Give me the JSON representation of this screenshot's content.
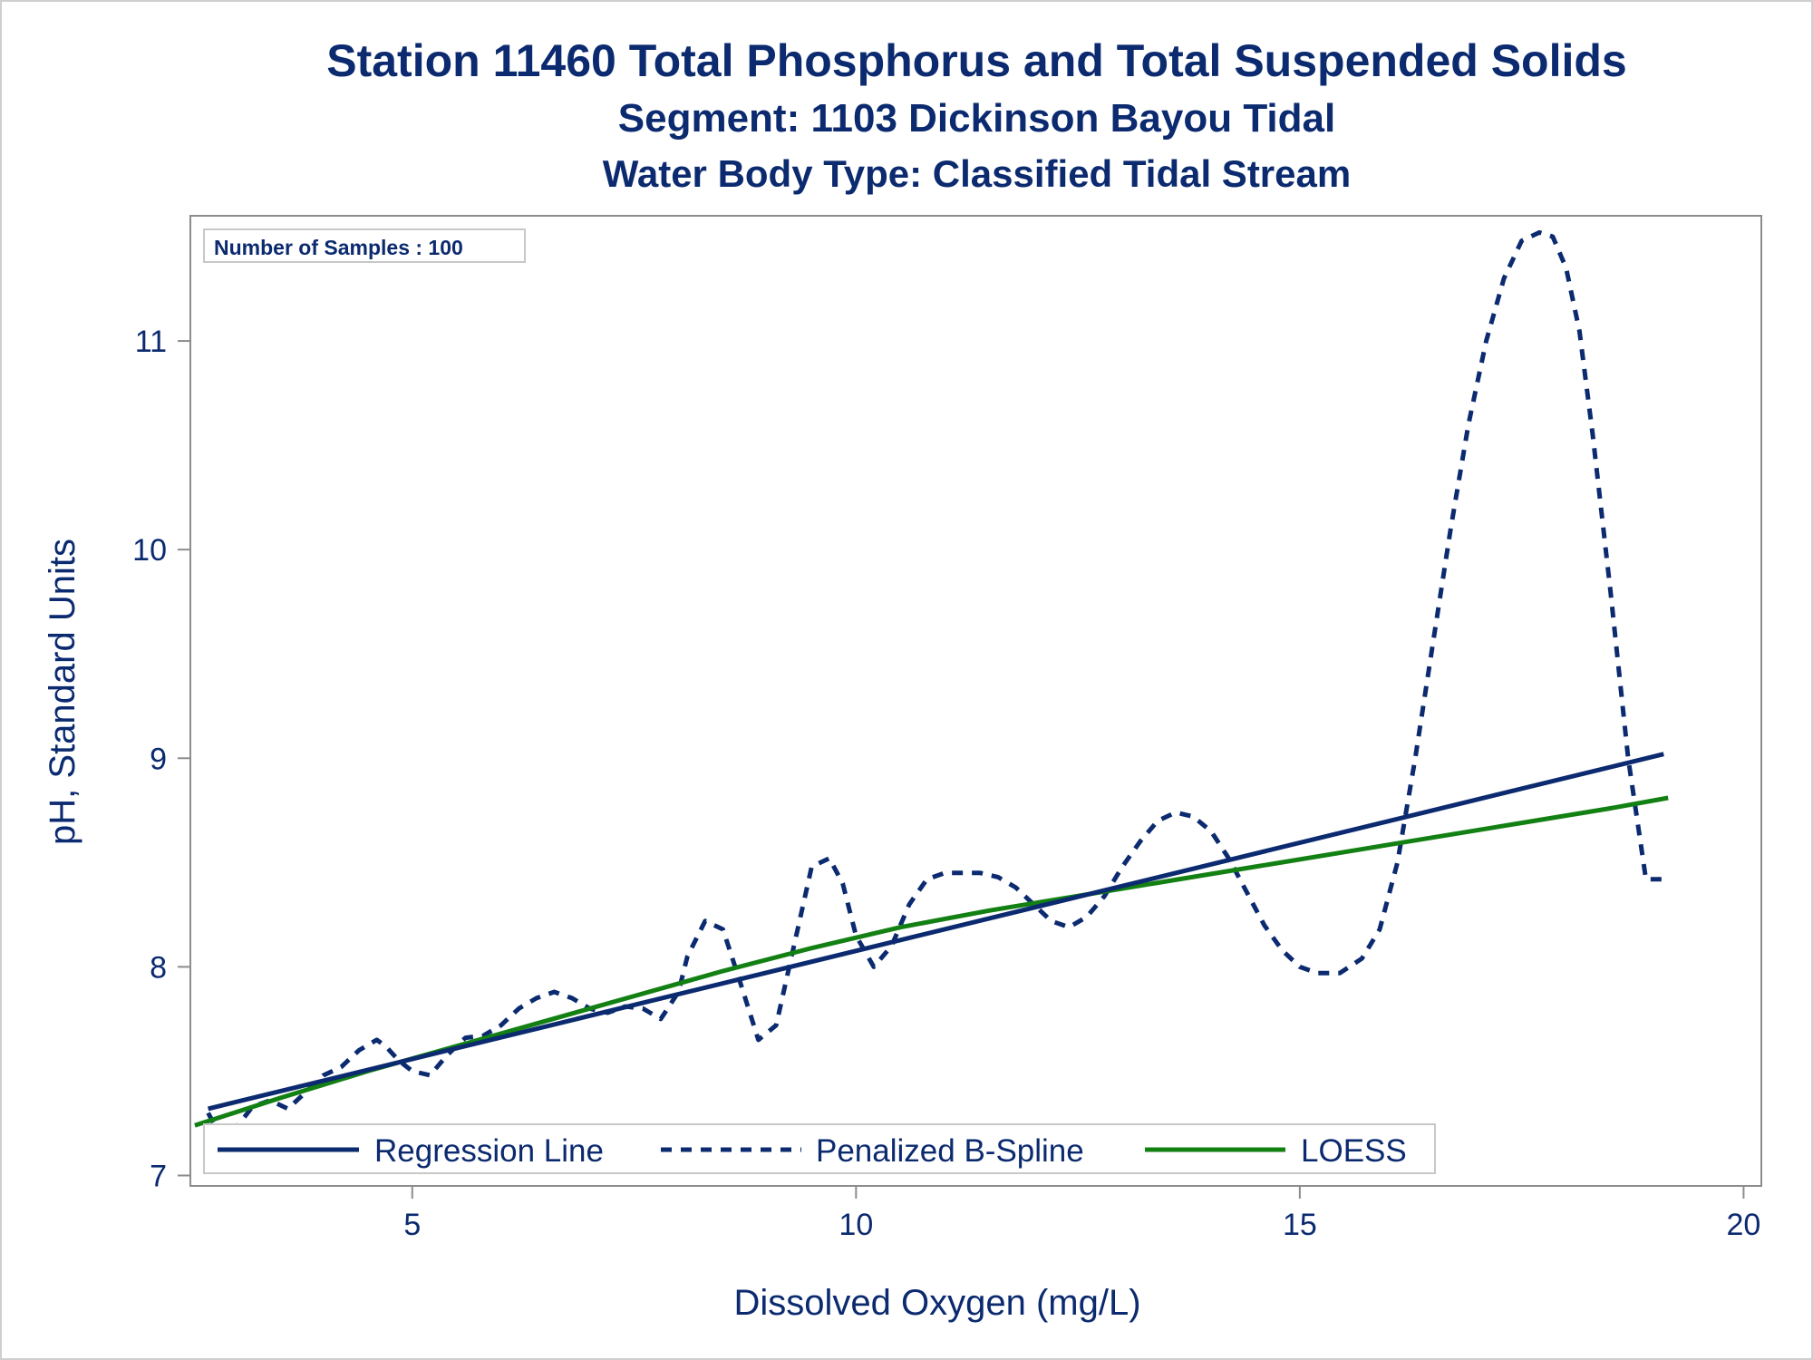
{
  "titles": {
    "line1": "Station 11460  Total Phosphorus and Total Suspended Solids",
    "line2": "Segment: 1103  Dickinson Bayou Tidal",
    "line3": "Water Body Type: Classified Tidal Stream"
  },
  "inset_label": "Number of Samples : 100",
  "colors": {
    "navy": "#0b2a6f",
    "green": "#138013",
    "frame": "#8c8c8c"
  },
  "chart_data": {
    "type": "line",
    "title": "Station 11460  Total Phosphorus and Total Suspended Solids",
    "xlabel": "Dissolved Oxygen (mg/L)",
    "ylabel": "pH, Standard Units",
    "xlim": [
      2.5,
      20.2
    ],
    "ylim": [
      6.95,
      11.6
    ],
    "xticks": [
      5,
      10,
      15,
      20
    ],
    "yticks": [
      7,
      8,
      9,
      10,
      11
    ],
    "grid": false,
    "legend_position": "bottom-left inside",
    "series": [
      {
        "name": "Regression Line",
        "style": "solid",
        "color": "#0b2a6f",
        "x": [
          2.7,
          19.1
        ],
        "y": [
          7.32,
          9.02
        ]
      },
      {
        "name": "Penalized B-Spline",
        "style": "dashed",
        "color": "#0b2a6f",
        "x": [
          2.7,
          2.85,
          3.0,
          3.2,
          3.4,
          3.6,
          3.8,
          4.0,
          4.2,
          4.4,
          4.6,
          4.7,
          4.85,
          5.0,
          5.2,
          5.4,
          5.6,
          5.8,
          6.0,
          6.2,
          6.4,
          6.6,
          6.8,
          7.0,
          7.2,
          7.4,
          7.6,
          7.8,
          8.0,
          8.1,
          8.3,
          8.5,
          8.7,
          8.9,
          9.1,
          9.3,
          9.5,
          9.7,
          9.85,
          10.0,
          10.2,
          10.4,
          10.6,
          10.8,
          11.0,
          11.2,
          11.4,
          11.6,
          11.8,
          12.0,
          12.2,
          12.4,
          12.6,
          12.8,
          13.0,
          13.2,
          13.4,
          13.6,
          13.8,
          14.0,
          14.2,
          14.4,
          14.6,
          14.8,
          15.0,
          15.2,
          15.45,
          15.7,
          15.9,
          16.1,
          16.3,
          16.5,
          16.7,
          16.9,
          17.1,
          17.3,
          17.5,
          17.7,
          17.85,
          18.0,
          18.15,
          18.3,
          18.5,
          18.7,
          18.9,
          19.0,
          19.1,
          19.15
        ],
        "y": [
          7.3,
          7.18,
          7.22,
          7.33,
          7.36,
          7.32,
          7.4,
          7.48,
          7.52,
          7.6,
          7.65,
          7.62,
          7.55,
          7.5,
          7.48,
          7.58,
          7.66,
          7.67,
          7.72,
          7.8,
          7.85,
          7.88,
          7.85,
          7.8,
          7.78,
          7.81,
          7.8,
          7.75,
          7.88,
          8.05,
          8.22,
          8.18,
          7.92,
          7.65,
          7.72,
          8.1,
          8.48,
          8.52,
          8.4,
          8.15,
          8.0,
          8.1,
          8.3,
          8.42,
          8.45,
          8.45,
          8.45,
          8.43,
          8.38,
          8.3,
          8.22,
          8.19,
          8.24,
          8.34,
          8.48,
          8.6,
          8.7,
          8.74,
          8.72,
          8.65,
          8.52,
          8.36,
          8.2,
          8.08,
          8.0,
          7.97,
          7.97,
          8.04,
          8.18,
          8.5,
          9.0,
          9.55,
          10.1,
          10.6,
          11.0,
          11.3,
          11.48,
          11.52,
          11.5,
          11.35,
          11.05,
          10.55,
          9.8,
          9.0,
          8.42,
          8.42,
          8.42,
          8.42
        ]
      },
      {
        "name": "LOESS",
        "style": "solid",
        "color": "#138013",
        "x": [
          2.55,
          3.5,
          4.5,
          5.5,
          6.5,
          7.5,
          8.5,
          9.5,
          10.5,
          11.5,
          12.5,
          13.5,
          14.5,
          15.5,
          16.5,
          17.5,
          18.5,
          19.15
        ],
        "y": [
          7.24,
          7.37,
          7.5,
          7.62,
          7.74,
          7.86,
          7.98,
          8.09,
          8.19,
          8.27,
          8.34,
          8.41,
          8.48,
          8.55,
          8.62,
          8.69,
          8.76,
          8.81
        ]
      }
    ]
  }
}
